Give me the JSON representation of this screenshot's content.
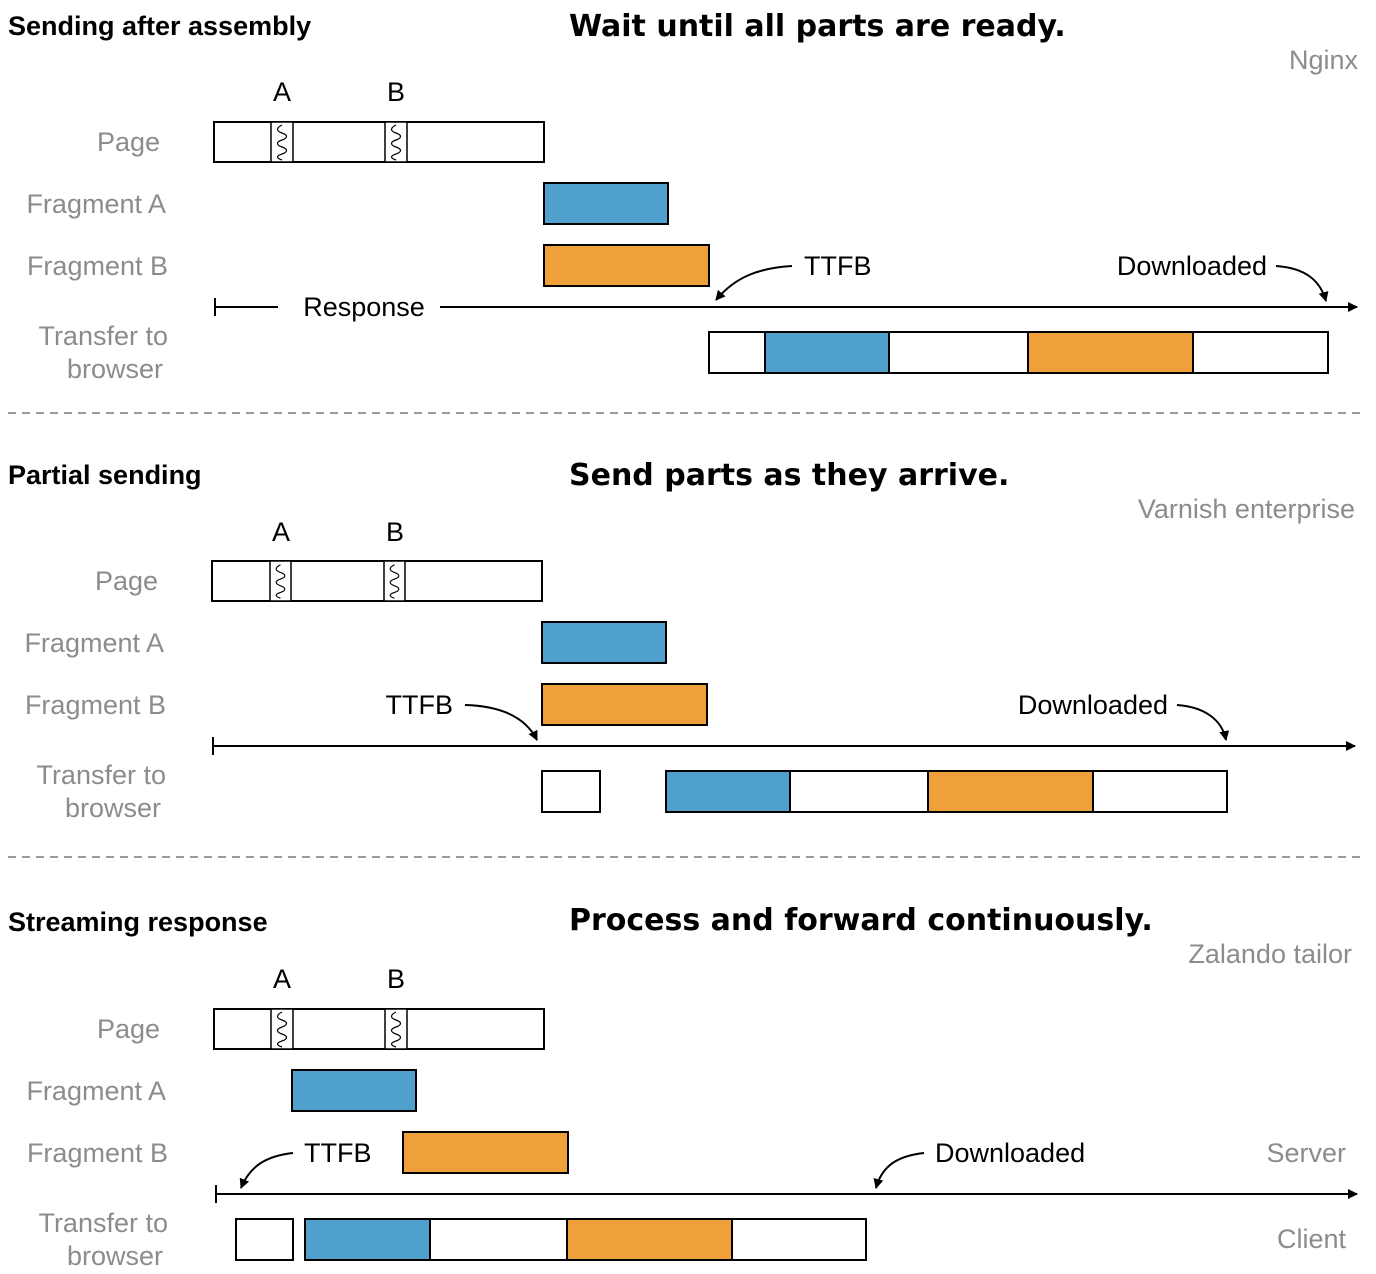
{
  "colors": {
    "fragment_a": "#4fa0cd",
    "fragment_b": "#f0a03a",
    "empty": "#ffffff"
  },
  "sections": [
    {
      "title": "Sending after assembly",
      "tagline": "Wait until all parts are ready.",
      "tool": "Nginx",
      "markers": [
        "A",
        "B"
      ],
      "rows": {
        "page": "Page",
        "fragment_a": "Fragment A",
        "fragment_b": "Fragment B",
        "transfer": [
          "Transfer to",
          "browser"
        ]
      },
      "response_label": "Response",
      "ttfb": "TTFB",
      "downloaded": "Downloaded"
    },
    {
      "title": "Partial sending",
      "tagline": "Send parts as they arrive.",
      "tool": "Varnish enterprise",
      "markers": [
        "A",
        "B"
      ],
      "rows": {
        "page": "Page",
        "fragment_a": "Fragment A",
        "fragment_b": "Fragment B",
        "transfer": [
          "Transfer to",
          "browser"
        ]
      },
      "ttfb": "TTFB",
      "downloaded": "Downloaded"
    },
    {
      "title": "Streaming response",
      "tagline": "Process and forward continuously.",
      "tool": "Zalando tailor",
      "markers": [
        "A",
        "B"
      ],
      "rows": {
        "page": "Page",
        "fragment_a": "Fragment A",
        "fragment_b": "Fragment B",
        "transfer": [
          "Transfer to",
          "browser"
        ]
      },
      "ttfb": "TTFB",
      "downloaded": "Downloaded",
      "server_label": "Server",
      "client_label": "Client"
    }
  ]
}
